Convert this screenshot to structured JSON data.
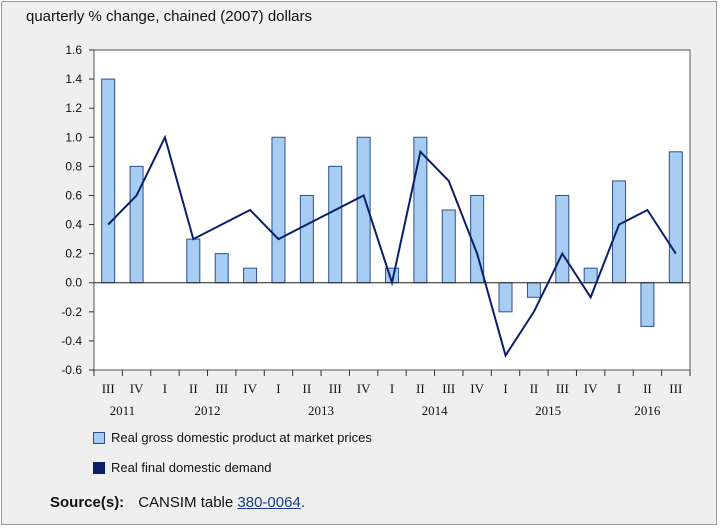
{
  "chart_data": {
    "type": "bar",
    "title": "",
    "unit_label": "quarterly % change, chained (2007) dollars",
    "xlabel": "",
    "ylabel": "",
    "ylim": [
      -0.6,
      1.6
    ],
    "yticks": [
      "1.6",
      "1.4",
      "1.2",
      "1.0",
      "0.8",
      "0.6",
      "0.4",
      "0.2",
      "0.0",
      "-0.2",
      "-0.4",
      "-0.6"
    ],
    "categories": [
      "III",
      "IV",
      "I",
      "II",
      "III",
      "IV",
      "I",
      "II",
      "III",
      "IV",
      "I",
      "II",
      "III",
      "IV",
      "I",
      "II",
      "III",
      "IV",
      "I",
      "II",
      "III"
    ],
    "year_groups": [
      {
        "label": "2011",
        "start": 0,
        "end": 1
      },
      {
        "label": "2012",
        "start": 2,
        "end": 5
      },
      {
        "label": "2013",
        "start": 6,
        "end": 9
      },
      {
        "label": "2014",
        "start": 10,
        "end": 13
      },
      {
        "label": "2015",
        "start": 14,
        "end": 17
      },
      {
        "label": "2016",
        "start": 18,
        "end": 20
      }
    ],
    "grid": false,
    "legend_position": "bottom",
    "series": [
      {
        "name": "Real gross domestic product at market prices",
        "type": "bar",
        "color": "#a8cdf2",
        "values": [
          1.4,
          0.8,
          0.0,
          0.3,
          0.2,
          0.1,
          1.0,
          0.6,
          0.8,
          1.0,
          0.1,
          1.0,
          0.5,
          0.6,
          -0.2,
          -0.1,
          0.6,
          0.1,
          0.7,
          -0.3,
          0.9
        ]
      },
      {
        "name": "Real final domestic demand",
        "type": "line",
        "color": "#0a1f6b",
        "values": [
          0.4,
          0.6,
          1.0,
          0.3,
          0.4,
          0.5,
          0.3,
          0.4,
          0.5,
          0.6,
          0.0,
          0.9,
          0.7,
          0.2,
          -0.5,
          -0.2,
          0.2,
          -0.1,
          0.4,
          0.5,
          0.2
        ]
      }
    ]
  },
  "source": {
    "label": "Source(s):",
    "text_before": "CANSIM table",
    "link_text": "380-0064",
    "text_after": "."
  }
}
